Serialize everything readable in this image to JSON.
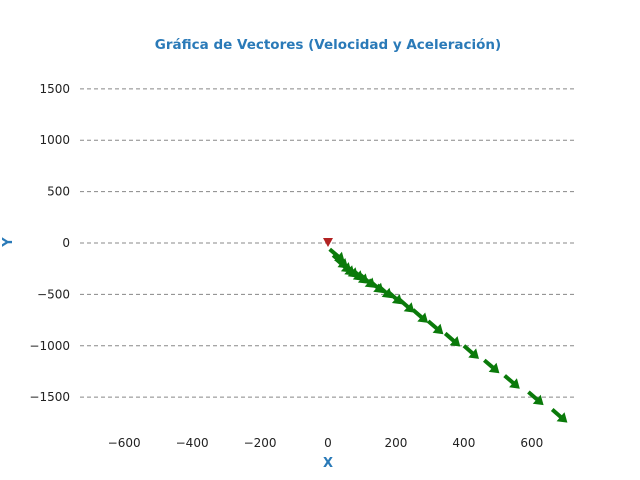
{
  "chart_data": {
    "type": "quiver",
    "title": "Gráfica de Vectores (Velocidad y Aceleración)",
    "xlabel": "X",
    "ylabel": "Y",
    "xlim": [
      -730,
      730
    ],
    "ylim": [
      -1800,
      1800
    ],
    "x_ticks": [
      -600,
      -400,
      -200,
      0,
      200,
      400,
      600
    ],
    "x_tick_labels": [
      "−600",
      "−400",
      "−200",
      "0",
      "200",
      "400",
      "600"
    ],
    "y_ticks": [
      1500,
      1000,
      500,
      0,
      -500,
      -1000,
      -1500
    ],
    "y_tick_labels": [
      "1500",
      "1000",
      "500",
      "0",
      "−500",
      "−1000",
      "−1500"
    ],
    "grid": "horizontal dashed",
    "colors": {
      "title": "#2a7ab8",
      "vectors": "#0a7a0a",
      "origin_marker": "#b22222",
      "grid": "#888888"
    },
    "origin_marker": {
      "x": 0,
      "y": 0,
      "shape": "triangle-down"
    },
    "series": [
      {
        "points": [
          [
            5,
            -60
          ],
          [
            15,
            -120
          ],
          [
            25,
            -160
          ],
          [
            35,
            -190
          ],
          [
            45,
            -210
          ],
          [
            60,
            -240
          ],
          [
            75,
            -270
          ],
          [
            95,
            -310
          ],
          [
            120,
            -360
          ],
          [
            145,
            -410
          ],
          [
            175,
            -470
          ],
          [
            210,
            -550
          ],
          [
            250,
            -650
          ],
          [
            295,
            -760
          ],
          [
            345,
            -880
          ],
          [
            400,
            -1000
          ],
          [
            460,
            -1140
          ],
          [
            520,
            -1290
          ],
          [
            590,
            -1450
          ],
          [
            660,
            -1620
          ]
        ],
        "direction": [
          0.35,
          -1
        ]
      }
    ]
  }
}
